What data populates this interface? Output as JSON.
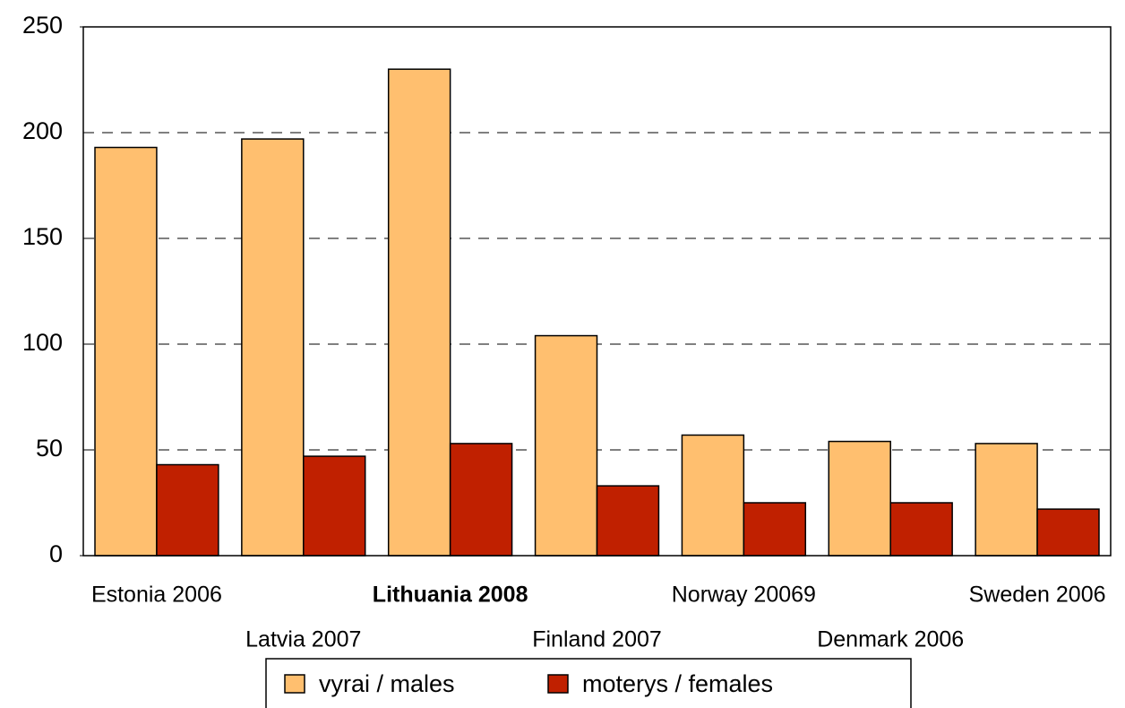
{
  "chart_data": {
    "type": "bar",
    "categories": [
      "Estonia 2006",
      "Latvia 2007",
      "Lithuania 2008",
      "Finland 2007",
      "Norway 20069",
      "Denmark 2006",
      "Sweden 2006"
    ],
    "highlight": "Lithuania 2008",
    "series": [
      {
        "name": "vyrai / males",
        "color": "#ffbf6f",
        "values": [
          193,
          197,
          230,
          104,
          57,
          54,
          53
        ]
      },
      {
        "name": "moterys / females",
        "color": "#c02000",
        "values": [
          43,
          47,
          53,
          33,
          25,
          25,
          22
        ]
      }
    ],
    "ylim": [
      0,
      250
    ],
    "yticks": [
      0,
      50,
      100,
      150,
      200,
      250
    ],
    "grid": true,
    "legend": "bottom"
  }
}
